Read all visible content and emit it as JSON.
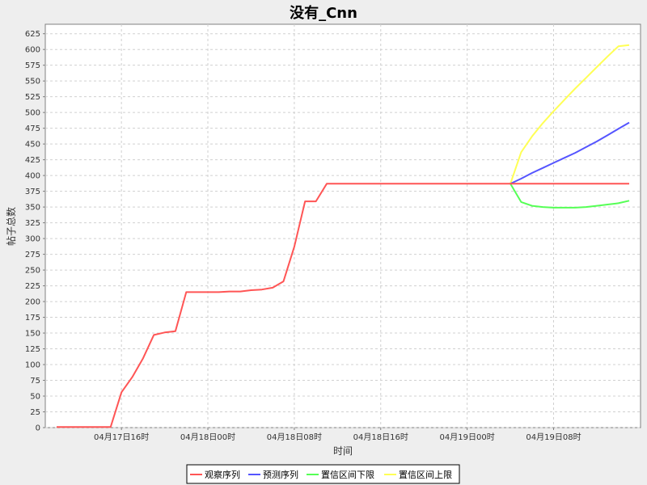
{
  "chart_data": {
    "type": "line",
    "title": "没有_Cnn",
    "xlabel": "时间",
    "ylabel": "帖子总数",
    "ylim": [
      0,
      640
    ],
    "yticks": [
      0,
      25,
      50,
      75,
      100,
      125,
      150,
      175,
      200,
      225,
      250,
      275,
      300,
      325,
      350,
      375,
      400,
      425,
      450,
      475,
      500,
      525,
      550,
      575,
      600,
      625
    ],
    "xlim": [
      "04月17日10时",
      "04月19日15时"
    ],
    "xticks": [
      {
        "x": "04月17日16时",
        "label": "04月17日16时"
      },
      {
        "x": "04月18日00时",
        "label": "04月18日00时"
      },
      {
        "x": "04月18日08时",
        "label": "04月18日08时"
      },
      {
        "x": "04月18日16时",
        "label": "04月18日16时"
      },
      {
        "x": "04月19日00时",
        "label": "04月19日00时"
      },
      {
        "x": "04月19日08时",
        "label": "04月19日08时"
      }
    ],
    "grid": true,
    "legend_position": "bottom",
    "series": [
      {
        "name": "观察序列",
        "color": "#ff5555",
        "x": [
          "04月17日10时",
          "04月17日11时",
          "04月17日12时",
          "04月17日13时",
          "04月17日14时",
          "04月17日15时",
          "04月17日16时",
          "04月17日17时",
          "04月17日18时",
          "04月17日19时",
          "04月17日20时",
          "04月17日21时",
          "04月17日22时",
          "04月17日23时",
          "04月18日00时",
          "04月18日01时",
          "04月18日02时",
          "04月18日03时",
          "04月18日04时",
          "04月18日05时",
          "04月18日06时",
          "04月18日07时",
          "04月18日08时",
          "04月18日09时",
          "04月18日10时",
          "04月18日11时",
          "04月18日12时",
          "04月18日13时",
          "04月18日14时",
          "04月18日15时",
          "04月18日16时",
          "04月18日17时",
          "04月18日18时",
          "04月18日19时",
          "04月18日20时",
          "04月18日21时",
          "04月18日22时",
          "04月18日23时",
          "04月19日00时",
          "04月19日01时",
          "04月19日02时",
          "04月19日03时",
          "04月19日04时",
          "04月19日05时",
          "04月19日06时",
          "04月19日07时",
          "04月19日08时",
          "04月19日09时",
          "04月19日10时",
          "04月19日11时",
          "04月19日12时",
          "04月19日13时",
          "04月19日14时",
          "04月19日15时"
        ],
        "values": [
          1,
          1,
          1,
          1,
          1,
          1,
          56,
          80,
          110,
          147,
          151,
          153,
          215,
          215,
          215,
          215,
          216,
          216,
          218,
          219,
          222,
          232,
          287,
          359,
          359,
          387,
          387,
          387,
          387,
          387,
          387,
          387,
          387,
          387,
          387,
          387,
          387,
          387,
          387,
          387,
          387,
          387,
          387,
          387,
          387,
          387,
          387,
          387,
          387,
          387,
          387,
          387,
          387,
          387
        ]
      },
      {
        "name": "预测序列",
        "color": "#5555ff",
        "x": [
          "04月19日04时",
          "04月19日05时",
          "04月19日06时",
          "04月19日07时",
          "04月19日08时",
          "04月19日09时",
          "04月19日10时",
          "04月19日11时",
          "04月19日12时",
          "04月19日13时",
          "04月19日14时",
          "04月19日15时"
        ],
        "values": [
          387,
          395,
          404,
          412,
          420,
          428,
          436,
          445,
          454,
          464,
          474,
          484
        ]
      },
      {
        "name": "置信区间下限",
        "color": "#55ff55",
        "x": [
          "04月19日04时",
          "04月19日05时",
          "04月19日06时",
          "04月19日07时",
          "04月19日08时",
          "04月19日09时",
          "04月19日10时",
          "04月19日11时",
          "04月19日12时",
          "04月19日13时",
          "04月19日14时",
          "04月19日15时"
        ],
        "values": [
          387,
          358,
          352,
          350,
          349,
          349,
          349,
          350,
          352,
          354,
          356,
          360
        ]
      },
      {
        "name": "置信区间上限",
        "color": "#ffff55",
        "x": [
          "04月19日04时",
          "04月19日05时",
          "04月19日06时",
          "04月19日07时",
          "04月19日08时",
          "04月19日09时",
          "04月19日10时",
          "04月19日11时",
          "04月19日12时",
          "04月19日13时",
          "04月19日14时",
          "04月19日15时"
        ],
        "values": [
          387,
          437,
          462,
          483,
          502,
          520,
          538,
          555,
          572,
          589,
          605,
          607
        ]
      }
    ]
  }
}
